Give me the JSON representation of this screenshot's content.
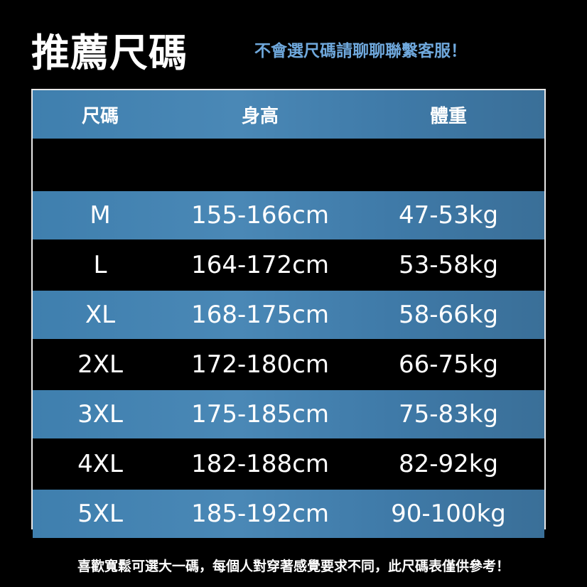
{
  "title": "推薦尺碼",
  "subtitle": "不會選尺碼請聊聊聯繫客服！",
  "table": {
    "headers": [
      "尺碼",
      "身高",
      "體重"
    ],
    "rows": [
      {
        "size": "M",
        "height": "155-166cm",
        "weight": "47-53kg"
      },
      {
        "size": "L",
        "height": "164-172cm",
        "weight": "53-58kg"
      },
      {
        "size": "XL",
        "height": "168-175cm",
        "weight": "58-66kg"
      },
      {
        "size": "2XL",
        "height": "172-180cm",
        "weight": "66-75kg"
      },
      {
        "size": "3XL",
        "height": "175-185cm",
        "weight": "75-83kg"
      },
      {
        "size": "4XL",
        "height": "182-188cm",
        "weight": "82-92kg"
      },
      {
        "size": "5XL",
        "height": "185-192cm",
        "weight": "90-100kg"
      }
    ]
  },
  "footer": "喜歡寬鬆可選大一碼，每個人對穿著感覺要求不同，此尺碼表僅供參考！",
  "colors": {
    "row_blue": "#4a88b6",
    "subtitle": "#6fa8dc"
  }
}
